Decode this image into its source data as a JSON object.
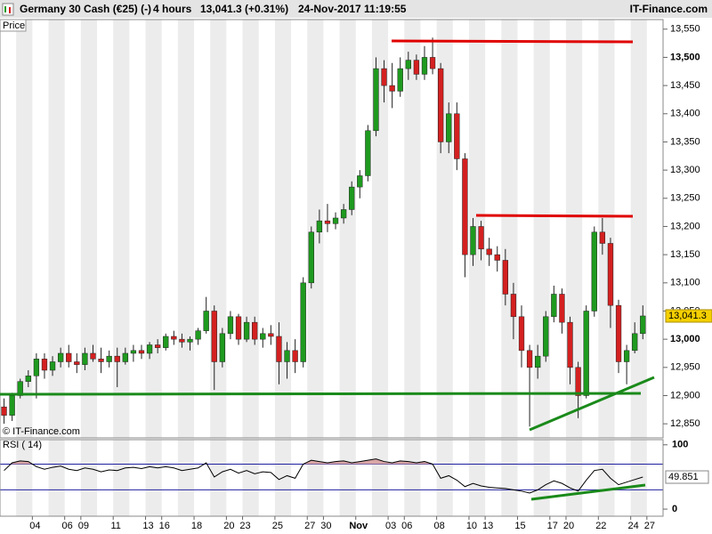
{
  "chart_data": {
    "type": "candlestick",
    "title": "Germany 30 Cash (€25) (-)",
    "interval": "4 hours",
    "quote": "13,041.3 (+0.31%)",
    "timestamp": "24-Nov-2017 11:19:55",
    "source": "IT-Finance.com",
    "panel_label": "Price",
    "watermark": "© IT-Finance.com",
    "last_label": "13,041.3",
    "up_color": "#1f9a1f",
    "down_color": "#d42020",
    "categories": [
      null,
      null,
      null,
      null,
      "04",
      null,
      null,
      null,
      "06",
      null,
      "09",
      null,
      null,
      null,
      "11",
      null,
      null,
      null,
      "13",
      null,
      "16",
      null,
      null,
      null,
      "18",
      null,
      null,
      null,
      "20",
      null,
      "23",
      null,
      null,
      null,
      "25",
      null,
      null,
      null,
      "27",
      null,
      "30",
      null,
      null,
      null,
      "Nov",
      null,
      null,
      null,
      "03",
      null,
      "06",
      null,
      null,
      null,
      "08",
      null,
      null,
      null,
      "10",
      null,
      "13",
      null,
      null,
      null,
      "15",
      null,
      null,
      null,
      "17",
      null,
      "20",
      null,
      null,
      null,
      "22",
      null,
      null,
      null,
      "24",
      null,
      "27",
      null
    ],
    "open": [
      12880,
      12865,
      12900,
      12925,
      12935,
      12965,
      12945,
      12960,
      12975,
      12960,
      12955,
      12975,
      12965,
      12960,
      12970,
      12960,
      12975,
      12980,
      12975,
      12990,
      12985,
      13005,
      13000,
      12995,
      13000,
      13015,
      13050,
      12960,
      13010,
      13040,
      13000,
      13030,
      13000,
      13010,
      13005,
      12960,
      12980,
      12960,
      13100,
      13190,
      13210,
      13205,
      13215,
      13230,
      13270,
      13290,
      13370,
      13480,
      13450,
      13440,
      13480,
      13495,
      13470,
      13500,
      13480,
      13350,
      13400,
      13320,
      13150,
      13200,
      13160,
      13150,
      13140,
      13080,
      13040,
      12980,
      12950,
      12970,
      13040,
      13080,
      13030,
      12950,
      12900,
      13050,
      13190,
      13170,
      13060,
      12960,
      12980,
      13010,
      null,
      null
    ],
    "high": [
      12895,
      12905,
      12930,
      12945,
      12975,
      12975,
      12970,
      12985,
      12990,
      12975,
      12985,
      12990,
      12985,
      12980,
      12985,
      12985,
      12990,
      12990,
      12995,
      13000,
      13010,
      13015,
      13010,
      13005,
      13020,
      13075,
      13060,
      13020,
      13050,
      13045,
      13040,
      13040,
      13020,
      13025,
      13030,
      12995,
      13000,
      13110,
      13200,
      13230,
      13240,
      13225,
      13240,
      13280,
      13300,
      13380,
      13500,
      13495,
      13490,
      13500,
      13510,
      13505,
      13520,
      13535,
      13490,
      13420,
      13420,
      13330,
      13215,
      13210,
      13180,
      13165,
      13160,
      13100,
      13060,
      12990,
      12990,
      13050,
      13095,
      13090,
      13040,
      12960,
      13060,
      13200,
      13215,
      13180,
      13070,
      12990,
      13030,
      13060,
      null,
      null
    ],
    "low": [
      12850,
      12855,
      12895,
      12915,
      12895,
      12930,
      12935,
      12950,
      12950,
      12940,
      12945,
      12960,
      12940,
      12950,
      12915,
      12955,
      12960,
      12965,
      12965,
      12975,
      12980,
      12990,
      12985,
      12980,
      12990,
      13010,
      12910,
      12950,
      13000,
      12990,
      12995,
      12990,
      12985,
      12990,
      12920,
      12930,
      12940,
      12950,
      13090,
      13170,
      13190,
      13195,
      13205,
      13220,
      13250,
      13280,
      13360,
      13420,
      13410,
      13430,
      13460,
      13460,
      13460,
      13470,
      13330,
      13330,
      13300,
      13110,
      13130,
      13140,
      13130,
      13120,
      13060,
      13000,
      12950,
      12845,
      12930,
      12960,
      13030,
      13010,
      12920,
      12860,
      12895,
      13040,
      13150,
      13020,
      12940,
      12920,
      12975,
      13000,
      null,
      null
    ],
    "close": [
      12865,
      12900,
      12925,
      12935,
      12965,
      12945,
      12960,
      12975,
      12960,
      12955,
      12975,
      12965,
      12960,
      12970,
      12960,
      12975,
      12980,
      12975,
      12990,
      12985,
      13005,
      13000,
      12995,
      13000,
      13015,
      13050,
      12960,
      13010,
      13040,
      13000,
      13030,
      13000,
      13010,
      13005,
      12960,
      12980,
      12960,
      13100,
      13190,
      13210,
      13205,
      13215,
      13230,
      13270,
      13290,
      13370,
      13480,
      13450,
      13440,
      13480,
      13495,
      13470,
      13500,
      13480,
      13350,
      13400,
      13320,
      13150,
      13200,
      13160,
      13150,
      13140,
      13080,
      13040,
      12980,
      12950,
      12970,
      13040,
      13080,
      13030,
      12950,
      12900,
      13050,
      13190,
      13170,
      13060,
      12960,
      12980,
      13010,
      13041.3,
      null,
      null
    ],
    "ylim": [
      12825,
      13567
    ],
    "yticks": [
      {
        "value": 12850,
        "label": "12,850"
      },
      {
        "value": 12900,
        "label": "12,900"
      },
      {
        "value": 12950,
        "label": "12,950"
      },
      {
        "value": 13000,
        "label": "13,000"
      },
      {
        "value": 13050,
        "label": "13,050"
      },
      {
        "value": 13100,
        "label": "13,100"
      },
      {
        "value": 13150,
        "label": "13,150"
      },
      {
        "value": 13200,
        "label": "13,200"
      },
      {
        "value": 13250,
        "label": "13,250"
      },
      {
        "value": 13300,
        "label": "13,300"
      },
      {
        "value": 13350,
        "label": "13,350"
      },
      {
        "value": 13400,
        "label": "13,400"
      },
      {
        "value": 13450,
        "label": "13,450"
      },
      {
        "value": 13500,
        "label": "13,500"
      },
      {
        "value": 13550,
        "label": "13,550"
      }
    ],
    "rsi": {
      "label": "RSI ( 14)",
      "color": "#000000",
      "band_color": "#2020a0",
      "overbought_fill": "#d9a6a6",
      "last_label": "49.851",
      "bands": [
        30,
        70
      ],
      "ylim": [
        -11,
        108
      ],
      "yticks": [
        0,
        100
      ],
      "values": [
        60,
        72,
        75,
        74,
        66,
        62,
        65,
        67,
        62,
        60,
        64,
        62,
        58,
        61,
        60,
        64,
        65,
        63,
        66,
        64,
        66,
        64,
        60,
        62,
        64,
        72,
        50,
        58,
        62,
        56,
        60,
        55,
        58,
        57,
        46,
        52,
        48,
        70,
        76,
        74,
        72,
        74,
        75,
        72,
        74,
        76,
        78,
        74,
        72,
        75,
        74,
        72,
        74,
        70,
        48,
        52,
        45,
        35,
        40,
        36,
        34,
        33,
        32,
        30,
        28,
        25,
        30,
        38,
        44,
        40,
        33,
        28,
        45,
        60,
        62,
        48,
        38,
        42,
        46,
        49.851,
        null,
        null
      ]
    }
  }
}
